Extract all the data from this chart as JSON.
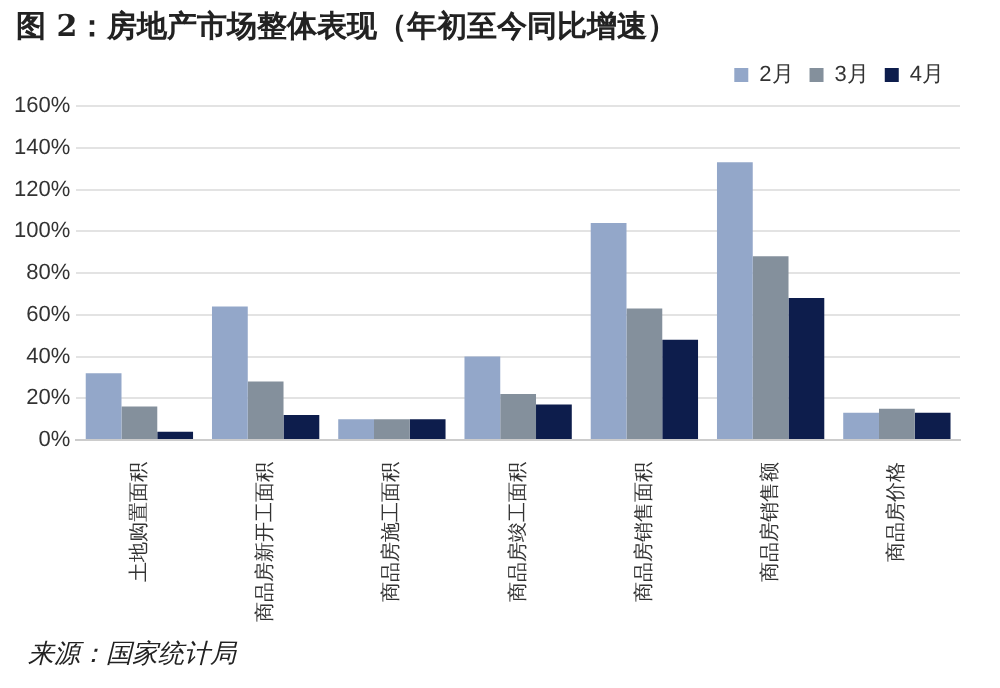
{
  "chart_data": {
    "type": "bar",
    "title": "图 2：房地产市场整体表现（年初至今同比增速）",
    "categories": [
      "土地购置面积",
      "商品房新开工面积",
      "商品房施工面积",
      "商品房竣工面积",
      "商品房销售面积",
      "商品房销售额",
      "商品房价格"
    ],
    "series": [
      {
        "name": "2月",
        "color": "#93a7c9",
        "values": [
          32,
          64,
          10,
          40,
          104,
          133,
          13
        ]
      },
      {
        "name": "3月",
        "color": "#84909c",
        "values": [
          16,
          28,
          10,
          22,
          63,
          88,
          15
        ]
      },
      {
        "name": "4月",
        "color": "#0d1d4c",
        "values": [
          4,
          12,
          10,
          17,
          48,
          68,
          13
        ]
      }
    ],
    "ylim": [
      0,
      160
    ],
    "yticks": [
      {
        "value": 0,
        "label": "0%"
      },
      {
        "value": 20,
        "label": "20%"
      },
      {
        "value": 40,
        "label": "40%"
      },
      {
        "value": 60,
        "label": "60%"
      },
      {
        "value": 80,
        "label": "80%"
      },
      {
        "value": 100,
        "label": "100%"
      },
      {
        "value": 120,
        "label": "120%"
      },
      {
        "value": 140,
        "label": "140%"
      },
      {
        "value": 160,
        "label": "160%"
      }
    ],
    "grid": "y",
    "legend": "top right",
    "annotations": [
      "来源：国家统计局"
    ]
  }
}
